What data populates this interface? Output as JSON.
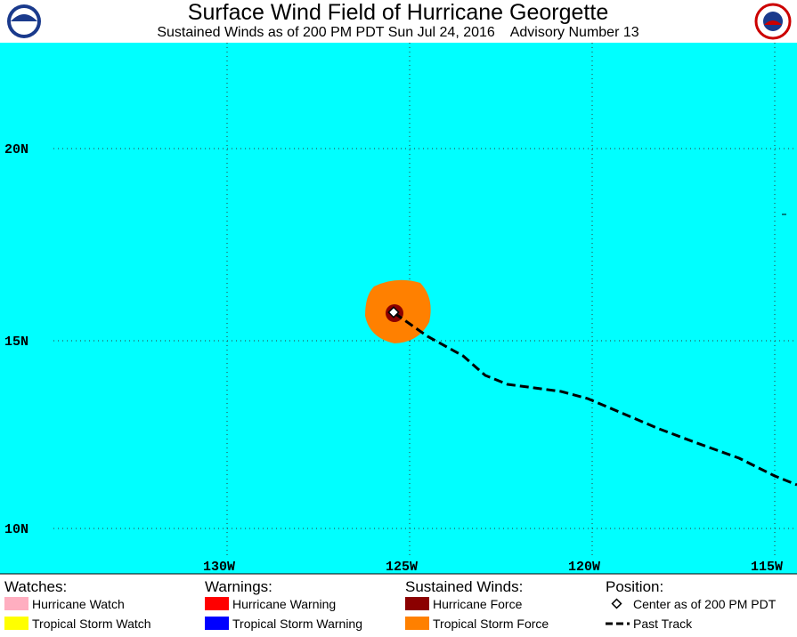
{
  "header": {
    "title": "Surface Wind Field of Hurricane Georgette",
    "subtitle": "Sustained Winds as of 200 PM PDT Sun Jul 24, 2016    Advisory Number 13"
  },
  "map": {
    "lat_labels": [
      "20N",
      "15N",
      "10N"
    ],
    "lon_labels": [
      "130W",
      "125W",
      "120W",
      "115W"
    ]
  },
  "legend": [
    {
      "heading": "Watches:",
      "items": [
        {
          "label": "Hurricane Watch",
          "color": "#ffaec0"
        },
        {
          "label": "Tropical Storm Watch",
          "color": "#ffff00"
        }
      ]
    },
    {
      "heading": "Warnings:",
      "items": [
        {
          "label": "Hurricane Warning",
          "color": "#ff0000"
        },
        {
          "label": "Tropical Storm Warning",
          "color": "#0000ff"
        }
      ]
    },
    {
      "heading": "Sustained Winds:",
      "items": [
        {
          "label": "Hurricane Force",
          "color": "#8b0000"
        },
        {
          "label": "Tropical Storm Force",
          "color": "#ff8000"
        }
      ]
    },
    {
      "heading": "Position:",
      "items": [
        {
          "label": "Center as of 200 PM PDT"
        },
        {
          "label": "Past Track"
        }
      ]
    }
  ]
}
